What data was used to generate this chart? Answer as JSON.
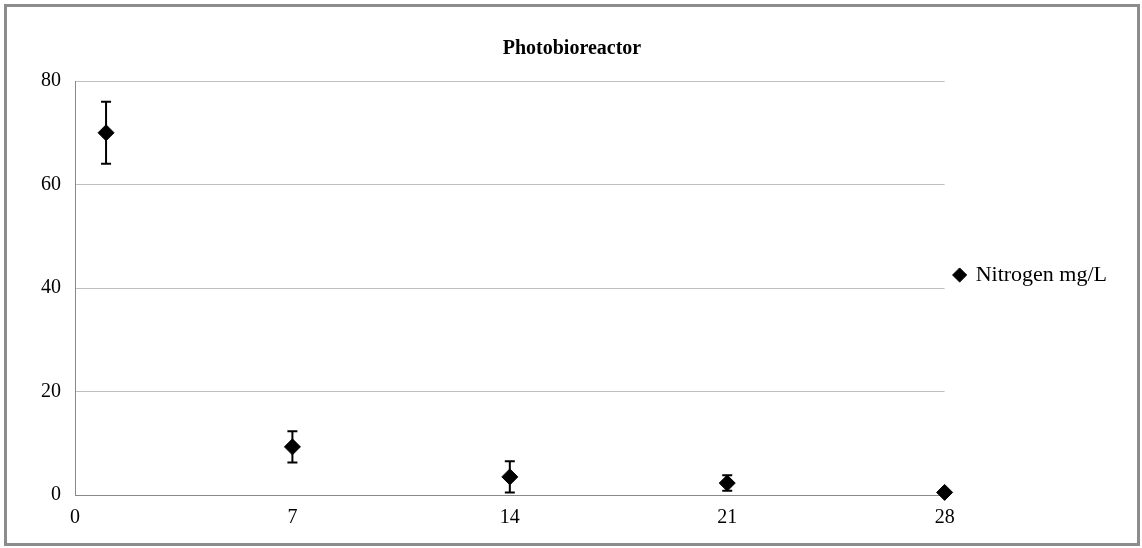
{
  "chart_data": {
    "type": "scatter",
    "title": "Photobioreactor",
    "x": [
      1,
      7,
      14,
      21,
      28
    ],
    "series": [
      {
        "name": "Nitrogen mg/L",
        "color": "#000000",
        "values": [
          70,
          9.3,
          3.5,
          2.3,
          0.5
        ],
        "errors": [
          6,
          3,
          3,
          1.5,
          null
        ]
      }
    ],
    "xlim": [
      0,
      28
    ],
    "xticks": [
      0,
      7,
      14,
      21,
      28
    ],
    "ylim": [
      0,
      80
    ],
    "yticks": [
      0,
      20,
      40,
      60,
      80
    ],
    "grid": "y",
    "legend": "right",
    "marker": "diamond"
  }
}
